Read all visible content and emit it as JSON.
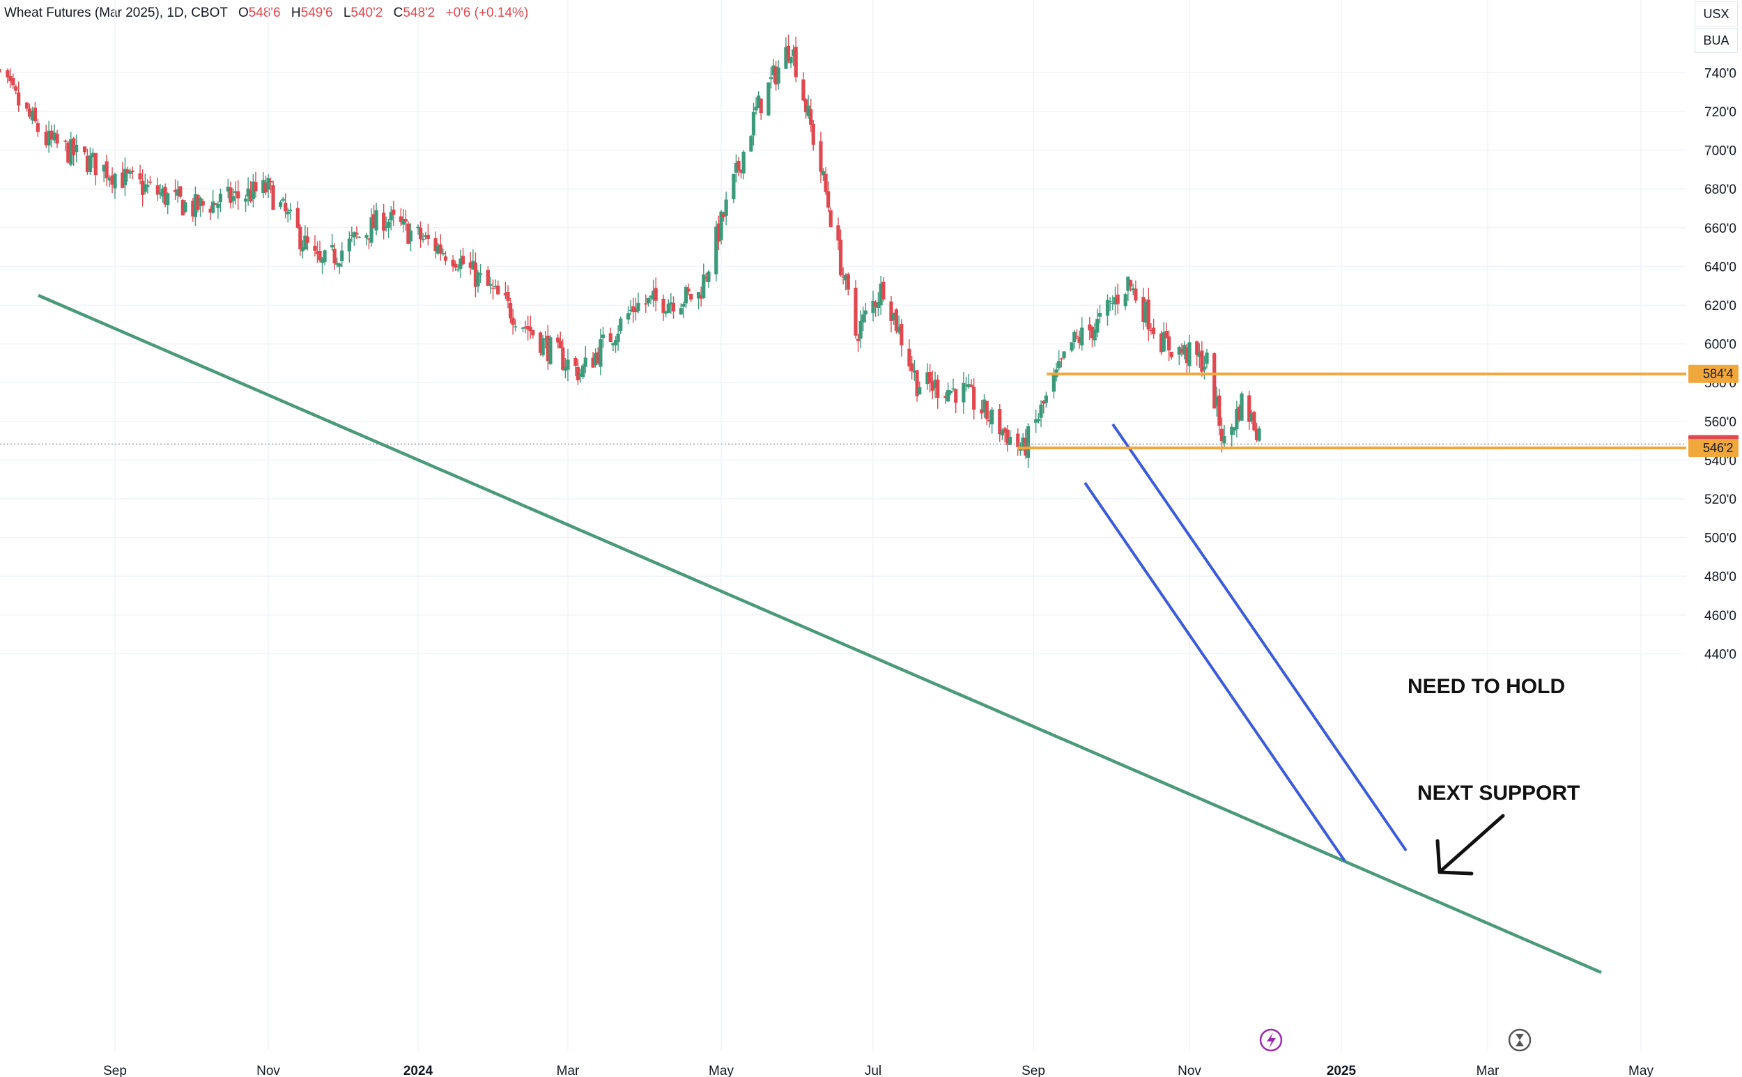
{
  "header": {
    "symbol": "Wheat Futures (Mar 2025), 1D, CBOT",
    "open_label": "O",
    "open": "548'6",
    "high_label": "H",
    "high": "549'6",
    "low_label": "L",
    "low": "540'2",
    "close_label": "C",
    "close": "548'2",
    "change": "+0'6 (+0.14%)"
  },
  "units": [
    "USX",
    "BUA"
  ],
  "colors": {
    "up": "#26a69a",
    "candle_up": "#3a9a7a",
    "down": "#e0484f",
    "trendline_green": "#4a9a7a",
    "channel_blue": "#3b5bdb",
    "level_orange": "#f0a73c",
    "last_price_red": "#e0484f",
    "grid": "#f0f3fa",
    "icon_purple": "#9c27b0",
    "icon_gray": "#555555"
  },
  "chart_data": {
    "type": "candlestick",
    "title": "Wheat Futures (Mar 2025), 1D, CBOT",
    "x_ticks": [
      "Sep",
      "Nov",
      "2024",
      "Mar",
      "May",
      "Jul",
      "Sep",
      "Nov",
      "2025",
      "Mar",
      "May"
    ],
    "y_ticks": [
      "740'0",
      "720'0",
      "700'0",
      "680'0",
      "660'0",
      "640'0",
      "620'0",
      "600'0",
      "580'0",
      "560'0",
      "540'0",
      "520'0",
      "500'0",
      "480'0",
      "460'0",
      "440'0"
    ],
    "ylim": [
      436,
      770
    ],
    "price_tags": [
      {
        "label": "584'4",
        "value": 584.5,
        "kind": "level"
      },
      {
        "label": "548'2",
        "value": 548.25,
        "kind": "last"
      },
      {
        "label": "546'2",
        "value": 546.25,
        "kind": "level"
      }
    ],
    "annotations": [
      {
        "text": "NEED TO HOLD"
      },
      {
        "text": "NEXT SUPPORT"
      }
    ],
    "anchors": [
      {
        "date": "2023-07-17",
        "close": 745
      },
      {
        "date": "2023-08-07",
        "close": 705
      },
      {
        "date": "2023-09-05",
        "close": 685
      },
      {
        "date": "2023-10-02",
        "close": 670
      },
      {
        "date": "2023-11-01",
        "close": 680
      },
      {
        "date": "2023-11-22",
        "close": 640
      },
      {
        "date": "2023-12-18",
        "close": 665
      },
      {
        "date": "2024-01-16",
        "close": 645
      },
      {
        "date": "2024-02-05",
        "close": 620
      },
      {
        "date": "2024-02-22",
        "close": 598
      },
      {
        "date": "2024-03-06",
        "close": 585
      },
      {
        "date": "2024-03-28",
        "close": 620
      },
      {
        "date": "2024-04-22",
        "close": 625
      },
      {
        "date": "2024-05-15",
        "close": 720
      },
      {
        "date": "2024-05-29",
        "close": 755
      },
      {
        "date": "2024-06-10",
        "close": 690
      },
      {
        "date": "2024-06-24",
        "close": 605
      },
      {
        "date": "2024-07-05",
        "close": 630
      },
      {
        "date": "2024-07-18",
        "close": 580
      },
      {
        "date": "2024-08-05",
        "close": 575
      },
      {
        "date": "2024-08-28",
        "close": 545
      },
      {
        "date": "2024-09-16",
        "close": 600
      },
      {
        "date": "2024-09-26",
        "close": 610
      },
      {
        "date": "2024-10-08",
        "close": 632
      },
      {
        "date": "2024-10-22",
        "close": 600
      },
      {
        "date": "2024-11-08",
        "close": 590
      },
      {
        "date": "2024-11-15",
        "close": 548
      },
      {
        "date": "2024-11-22",
        "close": 570
      },
      {
        "date": "2024-12-02",
        "close": 548
      }
    ]
  }
}
